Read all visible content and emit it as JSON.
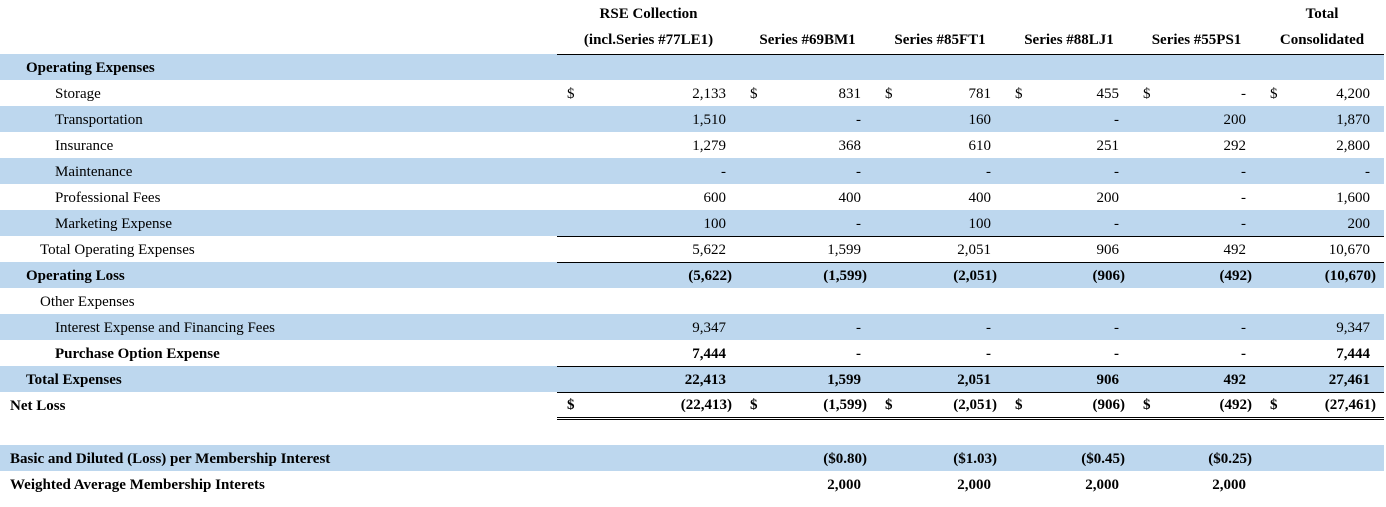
{
  "columns": [
    {
      "line1": "RSE Collection",
      "line2": "(incl.Series #77LE1)"
    },
    {
      "line1": "",
      "line2": "Series #69BM1"
    },
    {
      "line1": "",
      "line2": "Series #85FT1"
    },
    {
      "line1": "",
      "line2": "Series #88LJ1"
    },
    {
      "line1": "",
      "line2": "Series #55PS1"
    },
    {
      "line1": "Total",
      "line2": "Consolidated"
    }
  ],
  "colors": {
    "row_highlight": "#bdd7ee"
  },
  "rows": [
    {
      "label": "Operating Expenses",
      "indent": "lbl",
      "bold": true,
      "blue": true,
      "values": [
        "",
        "",
        "",
        "",
        "",
        ""
      ]
    },
    {
      "label": "Storage",
      "indent": "ind2",
      "blue": false,
      "dollar": true,
      "values": [
        "2,133",
        "831",
        "781",
        "455",
        "-",
        "4,200"
      ]
    },
    {
      "label": "Transportation",
      "indent": "ind2",
      "blue": true,
      "values": [
        "1,510",
        "-",
        "160",
        "-",
        "200",
        "1,870"
      ]
    },
    {
      "label": "Insurance",
      "indent": "ind2",
      "blue": false,
      "values": [
        "1,279",
        "368",
        "610",
        "251",
        "292",
        "2,800"
      ]
    },
    {
      "label": "Maintenance",
      "indent": "ind2",
      "blue": true,
      "values": [
        "-",
        "-",
        "-",
        "-",
        "-",
        "-"
      ]
    },
    {
      "label": "Professional Fees",
      "indent": "ind2",
      "blue": false,
      "values": [
        "600",
        "400",
        "400",
        "200",
        "-",
        "1,600"
      ]
    },
    {
      "label": "Marketing Expense",
      "indent": "ind2",
      "blue": true,
      "values": [
        "100",
        "-",
        "100",
        "-",
        "-",
        "200"
      ]
    },
    {
      "label": "Total Operating Expenses",
      "indent": "ind1",
      "blue": false,
      "topline": true,
      "values": [
        "5,622",
        "1,599",
        "2,051",
        "906",
        "492",
        "10,670"
      ]
    },
    {
      "label": "Operating Loss",
      "indent": "lbl",
      "bold": true,
      "blue": true,
      "topline": true,
      "values": [
        "(5,622)",
        "(1,599)",
        "(2,051)",
        "(906)",
        "(492)",
        "(10,670)"
      ]
    },
    {
      "label": "Other Expenses",
      "indent": "ind1",
      "blue": false,
      "values": [
        "",
        "",
        "",
        "",
        "",
        ""
      ]
    },
    {
      "label": "Interest Expense and Financing Fees",
      "indent": "ind2",
      "blue": true,
      "values": [
        "9,347",
        "-",
        "-",
        "-",
        "-",
        "9,347"
      ]
    },
    {
      "label": "Purchase Option Expense",
      "indent": "ind2",
      "bold": true,
      "blue": false,
      "values": [
        "7,444",
        "-",
        "-",
        "-",
        "-",
        "7,444"
      ]
    },
    {
      "label": "Total Expenses",
      "indent": "lbl",
      "bold": true,
      "blue": true,
      "topline": true,
      "values": [
        "22,413",
        "1,599",
        "2,051",
        "906",
        "492",
        "27,461"
      ]
    },
    {
      "label": "Net Loss",
      "indent": "ind0",
      "bold": true,
      "blue": false,
      "topline": true,
      "double": true,
      "dollar": true,
      "values": [
        "(22,413)",
        "(1,599)",
        "(2,051)",
        "(906)",
        "(492)",
        "(27,461)"
      ]
    },
    {
      "spacer": true
    },
    {
      "label": "Basic and Diluted (Loss) per Membership Interest",
      "indent": "ind0",
      "bold": true,
      "blue": true,
      "values": [
        "",
        "($0.80)",
        "($1.03)",
        "($0.45)",
        "($0.25)",
        ""
      ]
    },
    {
      "label": "Weighted Average Membership Interets",
      "indent": "ind0",
      "bold": true,
      "blue": false,
      "values": [
        "",
        "2,000",
        "2,000",
        "2,000",
        "2,000",
        ""
      ]
    }
  ],
  "currency_symbol": "$"
}
